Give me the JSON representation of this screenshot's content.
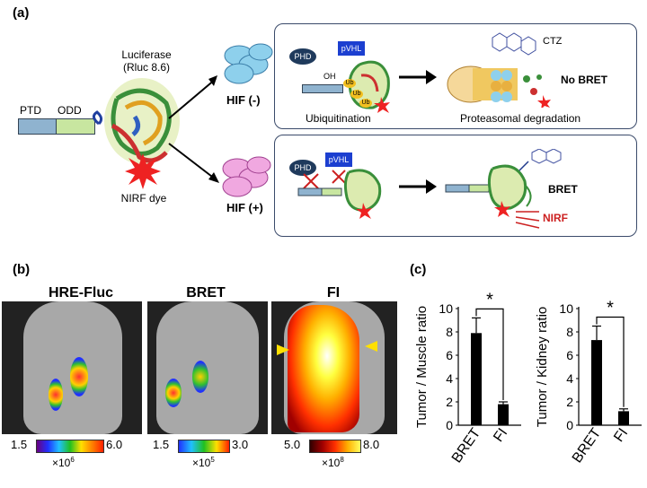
{
  "panel_a": {
    "label": "(a)",
    "construct": {
      "ptd": "PTD",
      "odd": "ODD"
    },
    "luciferase": {
      "line1": "Luciferase",
      "line2": "(Rluc 8.6)"
    },
    "nirf_dye": "NIRF dye",
    "hif_neg": "HIF (-)",
    "hif_pos": "HIF (+)",
    "top_box": {
      "phd": "PHD",
      "pvhl": "pVHL",
      "oh": "OH",
      "ub": "Ub",
      "ubiquitination": "Ubiquitination",
      "ctz": "CTZ",
      "no_bret": "No BRET",
      "proteasomal": "Proteasomal degradation"
    },
    "bottom_box": {
      "phd": "PHD",
      "pvhl": "pVHL",
      "bret": "BRET",
      "nirf": "NIRF"
    }
  },
  "panel_b": {
    "label": "(b)",
    "columns": [
      {
        "title": "HRE-Fluc",
        "cbar_min": "1.5",
        "cbar_max": "6.0",
        "scale": "×10",
        "exp": "6"
      },
      {
        "title": "BRET",
        "cbar_min": "1.5",
        "cbar_max": "3.0",
        "scale": "×10",
        "exp": "5"
      },
      {
        "title": "FI",
        "cbar_min": "5.0",
        "cbar_max": "8.0",
        "scale": "×10",
        "exp": "8"
      }
    ]
  },
  "panel_c": {
    "label": "(c)",
    "chart_data": [
      {
        "type": "bar",
        "categories": [
          "BRET",
          "FI"
        ],
        "values": [
          7.9,
          1.8
        ],
        "errors": [
          1.3,
          0.2
        ],
        "ylabel": "Tumor / Muscle ratio",
        "ylim": [
          0,
          10
        ],
        "yticks": [
          "0",
          "2",
          "4",
          "6",
          "8",
          "10"
        ],
        "significance": "*"
      },
      {
        "type": "bar",
        "categories": [
          "BRET",
          "FI"
        ],
        "values": [
          7.3,
          1.2
        ],
        "errors": [
          1.2,
          0.2
        ],
        "ylabel": "Tumor / Kidney ratio",
        "ylim": [
          0,
          10
        ],
        "yticks": [
          "0",
          "2",
          "4",
          "6",
          "8",
          "10"
        ],
        "significance": "*"
      }
    ]
  }
}
